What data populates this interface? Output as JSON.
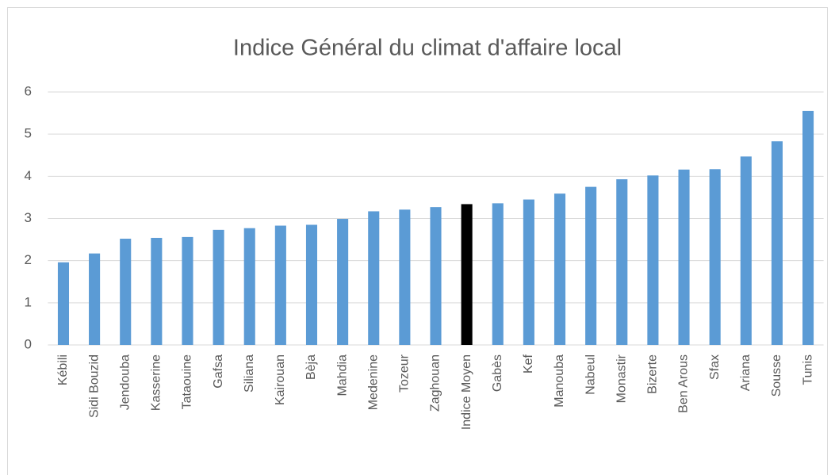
{
  "chart_data": {
    "type": "bar",
    "title": "Indice Général du climat d'affaire local",
    "categories": [
      "Kébili",
      "Sidi Bouzid",
      "Jendouba",
      "Kasserine",
      "Tataouine",
      "Gafsa",
      "Siliana",
      "Kairouan",
      "Bèja",
      "Mahdia",
      "Medenine",
      "Tozeur",
      "Zaghouan",
      "Indice Moyen",
      "Gabès",
      "Kef",
      "Manouba",
      "Nabeul",
      "Monastir",
      "Bizerte",
      "Ben Arous",
      "Sfax",
      "Ariana",
      "Sousse",
      "Tunis"
    ],
    "values": [
      1.96,
      2.17,
      2.52,
      2.54,
      2.56,
      2.73,
      2.77,
      2.83,
      2.85,
      2.99,
      3.17,
      3.21,
      3.27,
      3.34,
      3.36,
      3.45,
      3.59,
      3.75,
      3.93,
      4.02,
      4.16,
      4.17,
      4.47,
      4.83,
      5.55
    ],
    "colors": [
      "#5b9bd5",
      "#5b9bd5",
      "#5b9bd5",
      "#5b9bd5",
      "#5b9bd5",
      "#5b9bd5",
      "#5b9bd5",
      "#5b9bd5",
      "#5b9bd5",
      "#5b9bd5",
      "#5b9bd5",
      "#5b9bd5",
      "#5b9bd5",
      "#000000",
      "#5b9bd5",
      "#5b9bd5",
      "#5b9bd5",
      "#5b9bd5",
      "#5b9bd5",
      "#5b9bd5",
      "#5b9bd5",
      "#5b9bd5",
      "#5b9bd5",
      "#5b9bd5",
      "#5b9bd5"
    ],
    "ylim": [
      0,
      6
    ],
    "yticks": [
      0,
      1,
      2,
      3,
      4,
      5,
      6
    ],
    "grid": true
  }
}
